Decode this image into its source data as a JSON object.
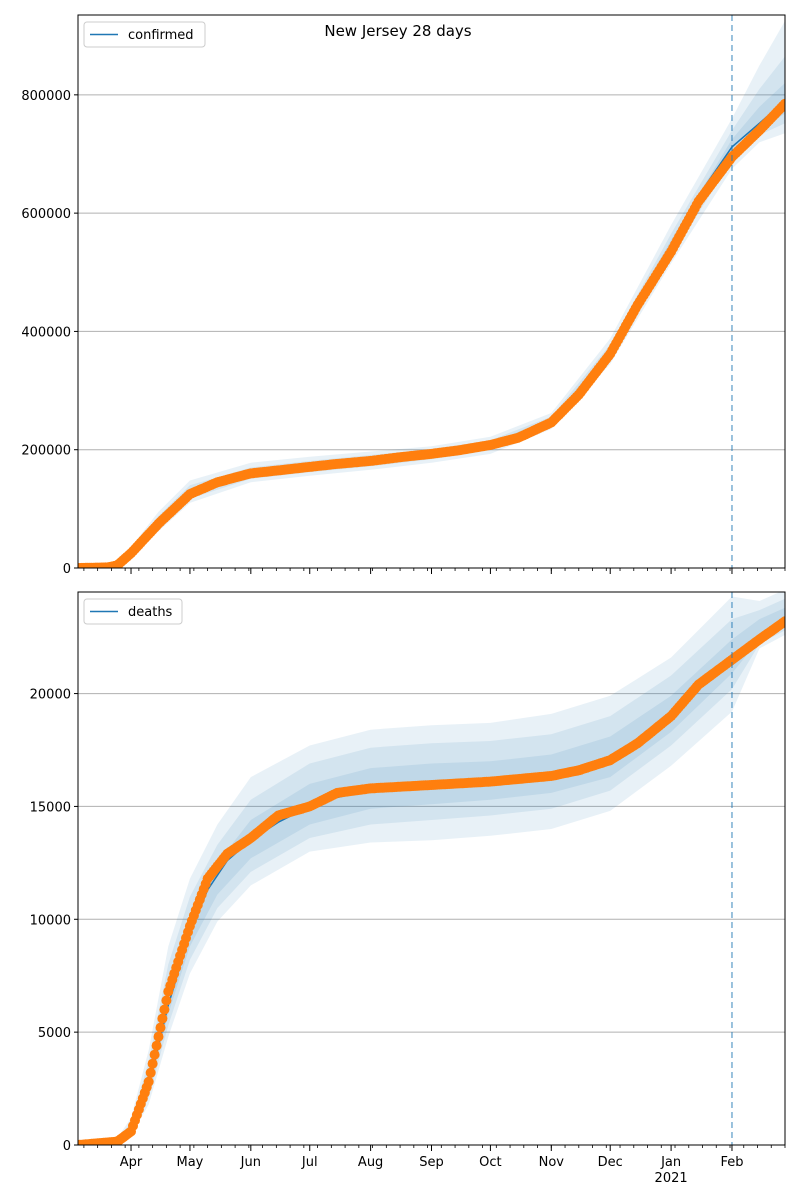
{
  "title": "New Jersey 28 days",
  "colors": {
    "model": "#1f77b4",
    "observed": "#ff7f0e",
    "band": "#1f77b4",
    "grid": "#b0b0b0",
    "forecast_line": "#1f77b4"
  },
  "chart_data": [
    {
      "type": "line",
      "title": "New Jersey 28 days",
      "legend": {
        "entries": [
          "confirmed"
        ],
        "placement": "top-left"
      },
      "grid": "y-major",
      "xlim": [
        "2020-03-05",
        "2021-02-28"
      ],
      "ylim": [
        0,
        935000
      ],
      "yticks": [
        0,
        200000,
        400000,
        600000,
        800000
      ],
      "forecast_start": "2021-02-01",
      "series": [
        {
          "name": "confirmed",
          "role": "model",
          "x": [
            "2020-03-05",
            "2020-03-20",
            "2020-03-25",
            "2020-04-01",
            "2020-04-15",
            "2020-05-01",
            "2020-05-15",
            "2020-06-01",
            "2020-06-15",
            "2020-07-01",
            "2020-07-15",
            "2020-08-01",
            "2020-08-15",
            "2020-09-01",
            "2020-09-15",
            "2020-10-01",
            "2020-10-15",
            "2020-11-01",
            "2020-11-15",
            "2020-12-01",
            "2020-12-15",
            "2021-01-01",
            "2021-01-15",
            "2021-02-01",
            "2021-02-15",
            "2021-02-28"
          ],
          "y": [
            0,
            1000,
            5000,
            26000,
            78000,
            128000,
            148000,
            160000,
            165000,
            171000,
            176000,
            181000,
            187000,
            193000,
            199000,
            208000,
            220000,
            248000,
            295000,
            365000,
            450000,
            545000,
            630000,
            712000,
            752000,
            790000
          ]
        },
        {
          "role": "observed",
          "x": [
            "2020-03-05",
            "2020-03-20",
            "2020-03-25",
            "2020-04-01",
            "2020-04-15",
            "2020-05-01",
            "2020-05-15",
            "2020-06-01",
            "2020-06-15",
            "2020-07-01",
            "2020-07-15",
            "2020-08-01",
            "2020-08-15",
            "2020-09-01",
            "2020-09-15",
            "2020-10-01",
            "2020-10-15",
            "2020-11-01",
            "2020-11-15",
            "2020-12-01",
            "2020-12-15",
            "2021-01-01",
            "2021-01-15",
            "2021-02-01",
            "2021-02-15",
            "2021-02-28"
          ],
          "y": [
            0,
            1000,
            4500,
            25000,
            75000,
            125000,
            145000,
            160000,
            165000,
            171000,
            176000,
            181000,
            187000,
            193000,
            199000,
            208000,
            220000,
            246000,
            293000,
            362000,
            445000,
            535000,
            620000,
            695000,
            740000,
            785000
          ]
        }
      ],
      "bands": [
        {
          "name": "outer",
          "x": [
            "2020-03-05",
            "2020-03-25",
            "2020-04-01",
            "2020-04-15",
            "2020-05-01",
            "2020-06-01",
            "2020-07-01",
            "2020-08-01",
            "2020-09-01",
            "2020-10-01",
            "2020-11-01",
            "2020-12-01",
            "2021-01-01",
            "2021-02-01",
            "2021-02-15",
            "2021-02-28"
          ],
          "low": [
            0,
            2000,
            18000,
            62000,
            110000,
            145000,
            156000,
            166000,
            178000,
            193000,
            235000,
            345000,
            515000,
            675000,
            720000,
            735000
          ],
          "high": [
            0,
            8000,
            35000,
            95000,
            148000,
            178000,
            188000,
            197000,
            206000,
            222000,
            262000,
            388000,
            580000,
            760000,
            850000,
            925000
          ]
        },
        {
          "name": "mid",
          "x": [
            "2020-03-05",
            "2020-03-25",
            "2020-04-01",
            "2020-04-15",
            "2020-05-01",
            "2020-06-01",
            "2020-07-01",
            "2020-08-01",
            "2020-09-01",
            "2020-10-01",
            "2020-11-01",
            "2020-12-01",
            "2021-01-01",
            "2021-02-01",
            "2021-02-15",
            "2021-02-28"
          ],
          "low": [
            0,
            3000,
            21000,
            68000,
            117000,
            151000,
            162000,
            172000,
            184000,
            199000,
            240000,
            353000,
            527000,
            690000,
            732000,
            752000
          ],
          "high": [
            0,
            7000,
            31000,
            88000,
            140000,
            170000,
            181000,
            191000,
            201000,
            216000,
            256000,
            378000,
            565000,
            740000,
            810000,
            865000
          ]
        },
        {
          "name": "inner",
          "x": [
            "2020-03-05",
            "2020-03-25",
            "2020-04-01",
            "2020-04-15",
            "2020-05-01",
            "2020-06-01",
            "2020-07-01",
            "2020-08-01",
            "2020-09-01",
            "2020-10-01",
            "2020-11-01",
            "2020-12-01",
            "2021-01-01",
            "2021-02-01",
            "2021-02-15",
            "2021-02-28"
          ],
          "low": [
            0,
            4000,
            23000,
            72000,
            122000,
            155000,
            166000,
            176000,
            188000,
            203000,
            244000,
            359000,
            535000,
            700000,
            742000,
            768000
          ],
          "high": [
            0,
            6000,
            28000,
            83000,
            134000,
            165000,
            176000,
            186000,
            197000,
            212000,
            252000,
            371000,
            555000,
            725000,
            780000,
            820000
          ]
        }
      ]
    },
    {
      "type": "line",
      "legend": {
        "entries": [
          "deaths"
        ],
        "placement": "top-left"
      },
      "grid": "y-major",
      "xlim": [
        "2020-03-05",
        "2021-02-28"
      ],
      "ylim": [
        0,
        24500
      ],
      "yticks": [
        0,
        5000,
        10000,
        15000,
        20000
      ],
      "forecast_start": "2021-02-01",
      "xticks": [
        {
          "date": "2020-04-01",
          "label": "Apr"
        },
        {
          "date": "2020-05-01",
          "label": "May"
        },
        {
          "date": "2020-06-01",
          "label": "Jun"
        },
        {
          "date": "2020-07-01",
          "label": "Jul"
        },
        {
          "date": "2020-08-01",
          "label": "Aug"
        },
        {
          "date": "2020-09-01",
          "label": "Sep"
        },
        {
          "date": "2020-10-01",
          "label": "Oct"
        },
        {
          "date": "2020-11-01",
          "label": "Nov"
        },
        {
          "date": "2020-12-01",
          "label": "Dec"
        },
        {
          "date": "2021-01-01",
          "label": "Jan",
          "sublabel": "2021"
        },
        {
          "date": "2021-02-01",
          "label": "Feb"
        }
      ],
      "series": [
        {
          "name": "deaths",
          "role": "model",
          "x": [
            "2020-03-05",
            "2020-03-25",
            "2020-04-01",
            "2020-04-10",
            "2020-04-20",
            "2020-05-01",
            "2020-05-10",
            "2020-05-20",
            "2020-06-01",
            "2020-06-15",
            "2020-07-01",
            "2020-07-15",
            "2020-08-01",
            "2020-09-01",
            "2020-10-01",
            "2020-11-01",
            "2020-11-15",
            "2020-12-01",
            "2020-12-15",
            "2021-01-01",
            "2021-01-15",
            "2021-02-01",
            "2021-02-15",
            "2021-02-28"
          ],
          "y": [
            0,
            200,
            700,
            2600,
            6200,
            9400,
            11300,
            12600,
            13500,
            14300,
            15000,
            15400,
            15700,
            15900,
            16100,
            16300,
            16500,
            16900,
            17700,
            19000,
            20200,
            21500,
            22400,
            23100
          ]
        },
        {
          "role": "observed",
          "x": [
            "2020-03-05",
            "2020-03-25",
            "2020-04-01",
            "2020-04-10",
            "2020-04-20",
            "2020-05-01",
            "2020-05-10",
            "2020-05-20",
            "2020-06-01",
            "2020-06-15",
            "2020-07-01",
            "2020-07-15",
            "2020-08-01",
            "2020-09-01",
            "2020-10-01",
            "2020-11-01",
            "2020-11-15",
            "2020-12-01",
            "2020-12-15",
            "2021-01-01",
            "2021-01-15",
            "2021-02-01",
            "2021-02-15",
            "2021-02-28"
          ],
          "y": [
            0,
            150,
            600,
            2800,
            6800,
            9700,
            11800,
            12900,
            13600,
            14600,
            15000,
            15600,
            15800,
            15950,
            16100,
            16350,
            16600,
            17050,
            17800,
            19000,
            20400,
            21500,
            22400,
            23200
          ]
        }
      ],
      "bands": [
        {
          "name": "outer",
          "x": [
            "2020-03-05",
            "2020-03-25",
            "2020-04-01",
            "2020-04-10",
            "2020-04-20",
            "2020-05-01",
            "2020-05-15",
            "2020-06-01",
            "2020-07-01",
            "2020-08-01",
            "2020-09-01",
            "2020-10-01",
            "2020-11-01",
            "2020-12-01",
            "2021-01-01",
            "2021-02-01",
            "2021-02-15",
            "2021-02-28"
          ],
          "low": [
            0,
            100,
            400,
            1800,
            4800,
            7600,
            9900,
            11500,
            13000,
            13400,
            13500,
            13700,
            14000,
            14800,
            16800,
            19200,
            22000,
            22600
          ],
          "high": [
            0,
            300,
            1200,
            4200,
            8800,
            11800,
            14200,
            16300,
            17700,
            18400,
            18600,
            18700,
            19100,
            19900,
            21600,
            24300,
            24100,
            24600
          ]
        },
        {
          "name": "mid",
          "x": [
            "2020-03-05",
            "2020-03-25",
            "2020-04-01",
            "2020-04-10",
            "2020-04-20",
            "2020-05-01",
            "2020-05-15",
            "2020-06-01",
            "2020-07-01",
            "2020-08-01",
            "2020-09-01",
            "2020-10-01",
            "2020-11-01",
            "2020-12-01",
            "2021-01-01",
            "2021-02-01",
            "2021-02-15",
            "2021-02-28"
          ],
          "low": [
            0,
            120,
            500,
            2100,
            5300,
            8200,
            10500,
            12100,
            13600,
            14200,
            14400,
            14600,
            14900,
            15700,
            17700,
            20200,
            22200,
            22800
          ],
          "high": [
            0,
            260,
            1000,
            3700,
            8000,
            11000,
            13300,
            15300,
            16900,
            17600,
            17800,
            17900,
            18200,
            19000,
            20800,
            23300,
            23700,
            24200
          ]
        },
        {
          "name": "inner",
          "x": [
            "2020-03-05",
            "2020-03-25",
            "2020-04-01",
            "2020-04-10",
            "2020-04-20",
            "2020-05-01",
            "2020-05-15",
            "2020-06-01",
            "2020-07-01",
            "2020-08-01",
            "2020-09-01",
            "2020-10-01",
            "2020-11-01",
            "2020-12-01",
            "2021-01-01",
            "2021-02-01",
            "2021-02-15",
            "2021-02-28"
          ],
          "low": [
            0,
            150,
            600,
            2400,
            5800,
            8800,
            11100,
            12700,
            14200,
            14900,
            15100,
            15300,
            15600,
            16300,
            18300,
            20900,
            22400,
            23000
          ],
          "high": [
            0,
            230,
            850,
            3200,
            7200,
            10200,
            12500,
            14400,
            16000,
            16700,
            16900,
            17000,
            17300,
            18100,
            19900,
            22400,
            23300,
            23800
          ]
        }
      ]
    }
  ]
}
